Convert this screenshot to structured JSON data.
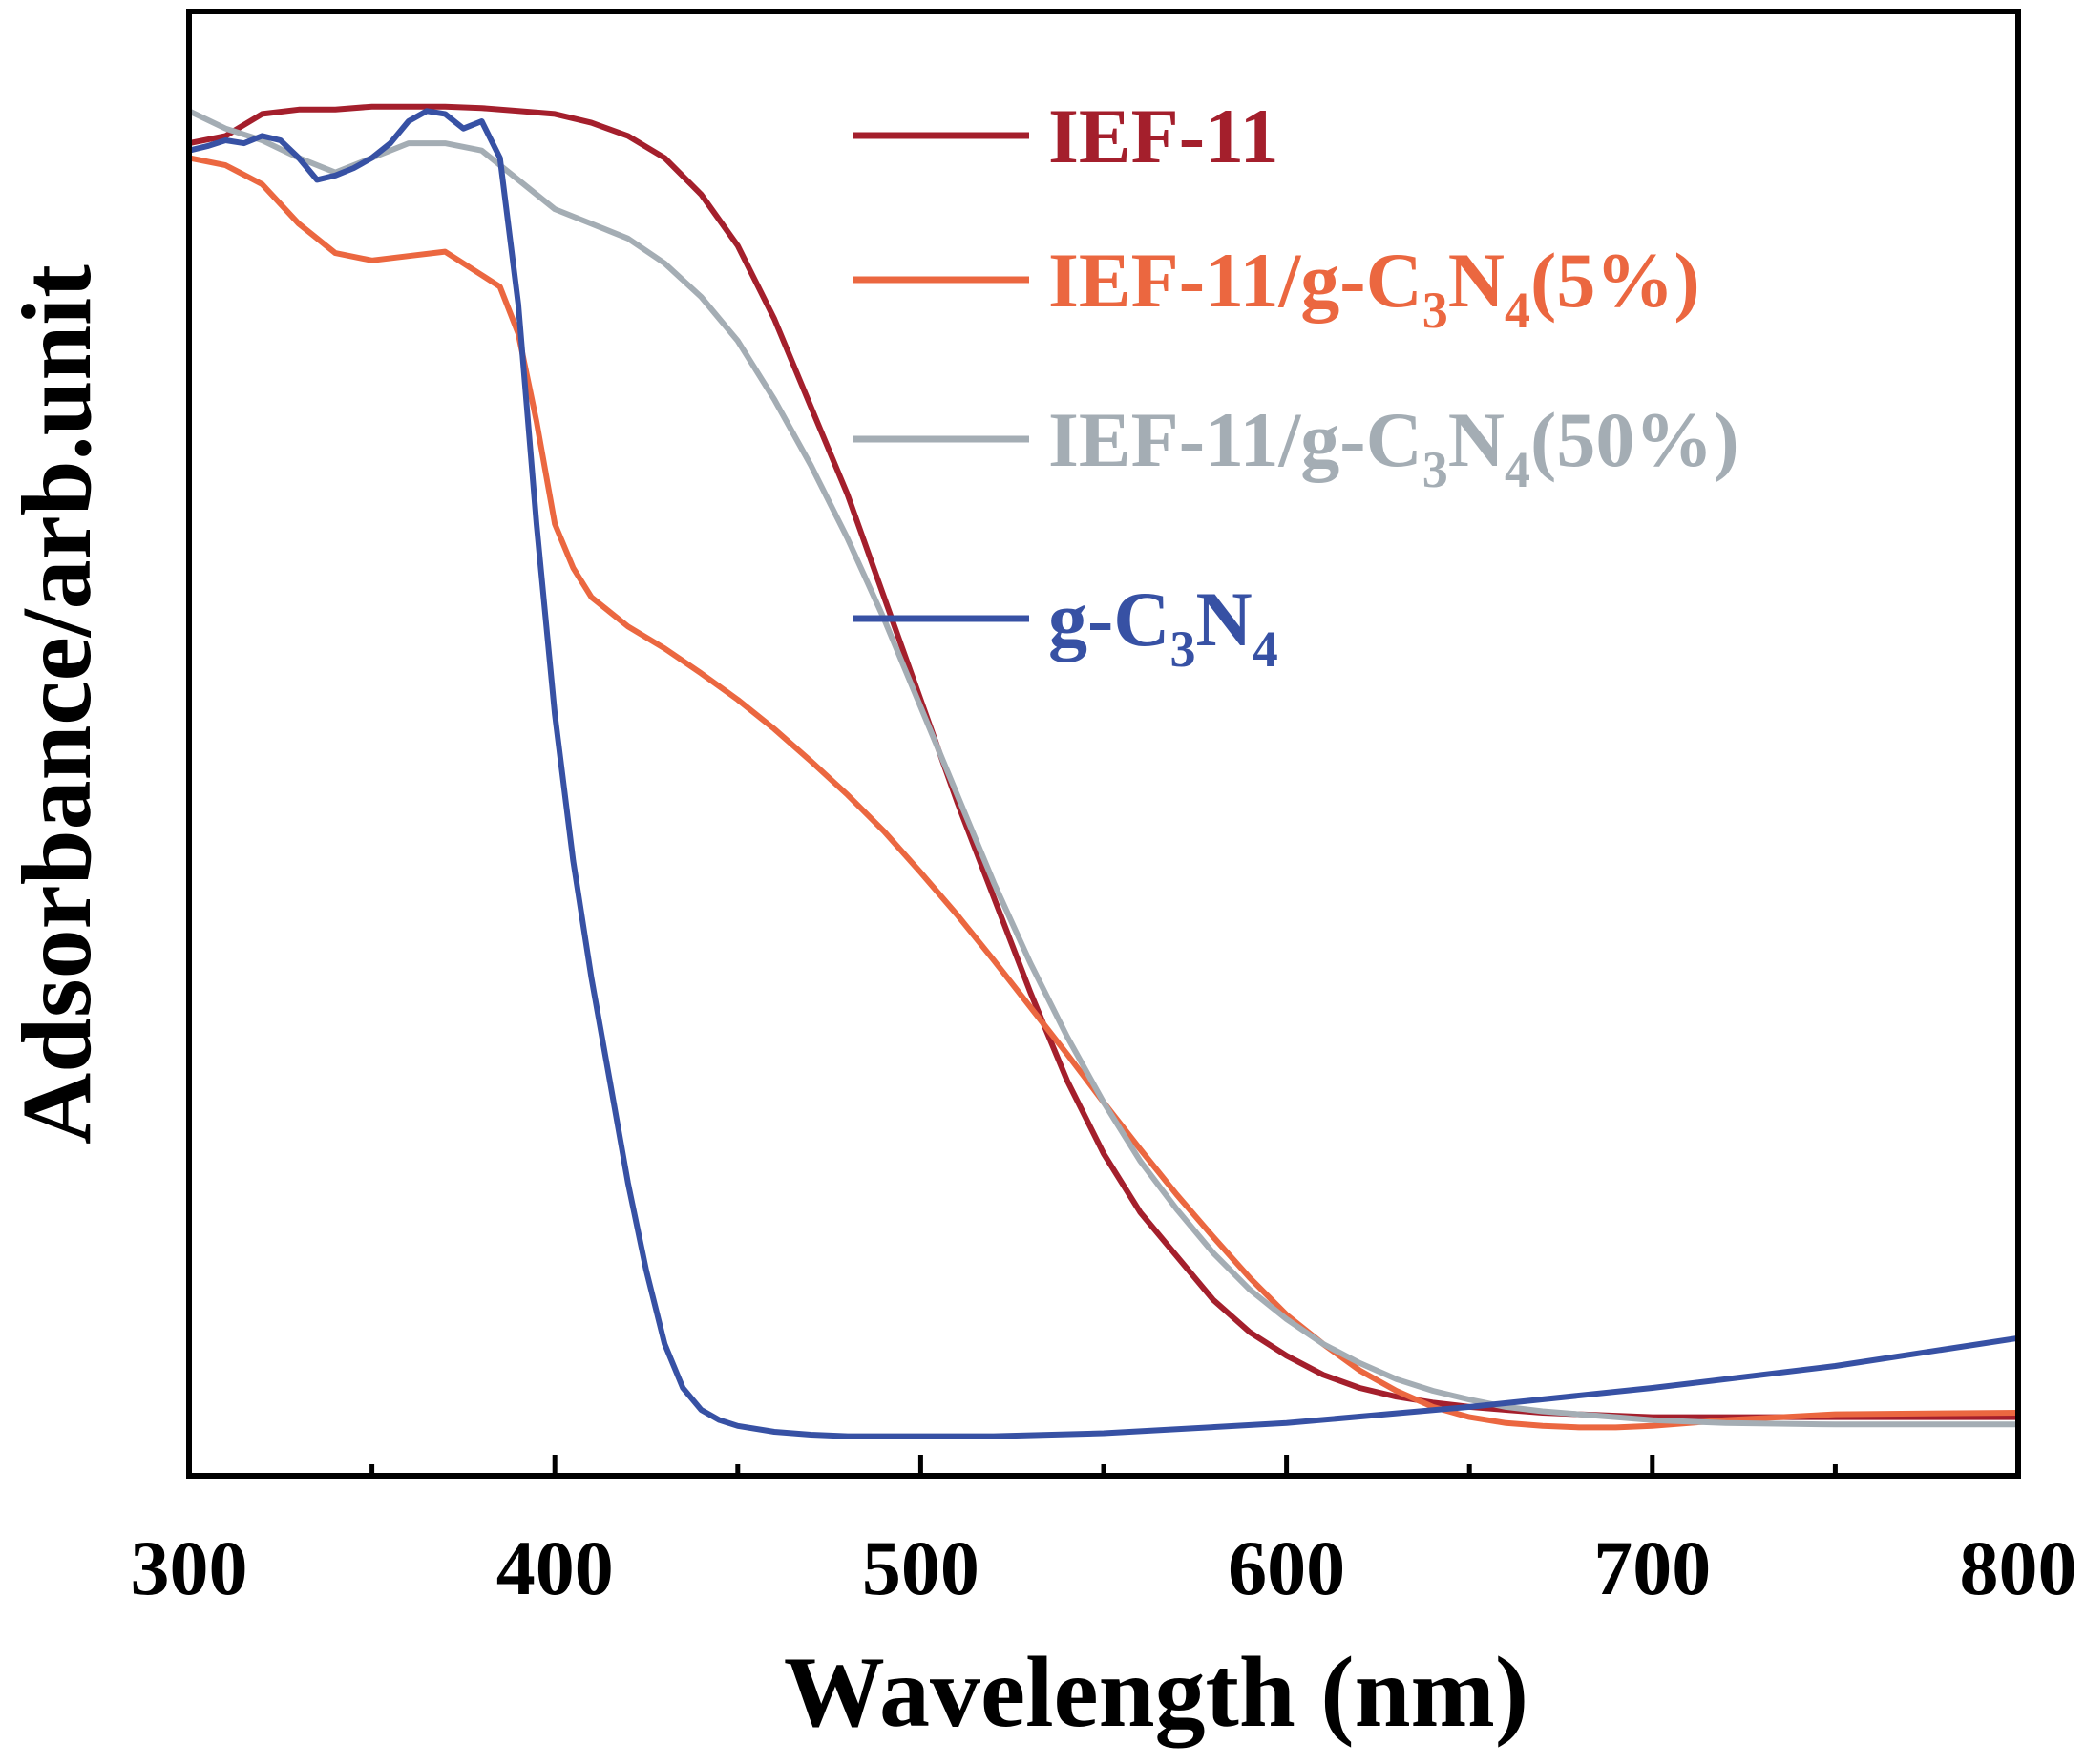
{
  "chart_data": {
    "type": "line",
    "xlabel": "Wavelength (nm)",
    "ylabel": "Adsorbance/arb.unit",
    "xlim": [
      300,
      800
    ],
    "ylim": [
      0,
      1
    ],
    "x_ticks": [
      "300",
      "400",
      "500",
      "600",
      "700",
      "800"
    ],
    "x_minor_ticks": [
      350,
      450,
      550,
      650,
      750
    ],
    "y_ticks": [],
    "grid": false,
    "legend_position": "top-right",
    "series": [
      {
        "name": "IEF-11",
        "legend": {
          "prefix": "IEF-11",
          "sub1": "",
          "mid": "",
          "sub2": "",
          "suffix": ""
        },
        "color": "#A41F2C",
        "x": [
          300,
          310,
          320,
          330,
          340,
          350,
          360,
          370,
          380,
          390,
          400,
          410,
          420,
          430,
          440,
          450,
          460,
          470,
          480,
          490,
          500,
          510,
          520,
          530,
          540,
          550,
          560,
          570,
          580,
          590,
          600,
          610,
          620,
          630,
          640,
          650,
          660,
          670,
          680,
          690,
          700,
          720,
          750,
          800
        ],
        "y": [
          0.91,
          0.915,
          0.93,
          0.933,
          0.933,
          0.935,
          0.935,
          0.935,
          0.934,
          0.932,
          0.93,
          0.924,
          0.915,
          0.9,
          0.875,
          0.84,
          0.79,
          0.73,
          0.67,
          0.6,
          0.53,
          0.46,
          0.395,
          0.33,
          0.27,
          0.22,
          0.18,
          0.15,
          0.12,
          0.098,
          0.082,
          0.069,
          0.06,
          0.054,
          0.05,
          0.047,
          0.045,
          0.043,
          0.042,
          0.041,
          0.04,
          0.04,
          0.04,
          0.04
        ]
      },
      {
        "name": "IEF-11/g-C3N4(5%)",
        "legend": {
          "prefix": "IEF-11/g-C",
          "sub1": "3",
          "mid": "N",
          "sub2": "4",
          "suffix": "(5%)"
        },
        "color": "#EB6740",
        "x": [
          300,
          310,
          320,
          330,
          340,
          350,
          360,
          370,
          380,
          385,
          390,
          395,
          400,
          405,
          410,
          420,
          430,
          440,
          450,
          460,
          470,
          480,
          490,
          500,
          510,
          520,
          530,
          540,
          550,
          560,
          570,
          580,
          590,
          600,
          610,
          620,
          630,
          640,
          650,
          660,
          670,
          680,
          690,
          700,
          720,
          750,
          800
        ],
        "y": [
          0.9,
          0.895,
          0.882,
          0.855,
          0.835,
          0.83,
          0.833,
          0.836,
          0.82,
          0.812,
          0.78,
          0.72,
          0.65,
          0.62,
          0.6,
          0.58,
          0.565,
          0.548,
          0.53,
          0.51,
          0.488,
          0.465,
          0.44,
          0.412,
          0.383,
          0.352,
          0.32,
          0.288,
          0.255,
          0.223,
          0.192,
          0.163,
          0.135,
          0.11,
          0.09,
          0.072,
          0.058,
          0.047,
          0.04,
          0.036,
          0.034,
          0.033,
          0.033,
          0.034,
          0.038,
          0.042,
          0.043
        ]
      },
      {
        "name": "IEF-11/g-C3N4(50%)",
        "legend": {
          "prefix": "IEF-11/g-C",
          "sub1": "3",
          "mid": "N",
          "sub2": "4",
          "suffix": "(50%)"
        },
        "color": "#A4ADB4",
        "x": [
          300,
          310,
          320,
          330,
          340,
          350,
          360,
          370,
          380,
          390,
          400,
          410,
          420,
          430,
          440,
          450,
          460,
          470,
          480,
          490,
          500,
          510,
          520,
          530,
          540,
          550,
          560,
          570,
          580,
          590,
          600,
          610,
          620,
          630,
          640,
          650,
          660,
          670,
          680,
          690,
          700,
          720,
          750,
          800
        ],
        "y": [
          0.932,
          0.92,
          0.912,
          0.9,
          0.89,
          0.9,
          0.91,
          0.91,
          0.905,
          0.885,
          0.865,
          0.855,
          0.845,
          0.828,
          0.805,
          0.775,
          0.735,
          0.69,
          0.64,
          0.585,
          0.525,
          0.465,
          0.405,
          0.35,
          0.3,
          0.255,
          0.215,
          0.182,
          0.152,
          0.127,
          0.107,
          0.09,
          0.077,
          0.066,
          0.058,
          0.052,
          0.047,
          0.044,
          0.042,
          0.04,
          0.038,
          0.036,
          0.035,
          0.035
        ]
      },
      {
        "name": "g-C3N4",
        "legend": {
          "prefix": "g-C",
          "sub1": "3",
          "mid": "N",
          "sub2": "4",
          "suffix": ""
        },
        "color": "#3751A4",
        "x": [
          300,
          305,
          310,
          315,
          320,
          325,
          330,
          335,
          340,
          345,
          350,
          355,
          360,
          365,
          370,
          375,
          380,
          385,
          390,
          395,
          400,
          405,
          410,
          415,
          420,
          425,
          430,
          435,
          440,
          445,
          450,
          460,
          470,
          480,
          500,
          520,
          550,
          600,
          650,
          700,
          750,
          800
        ],
        "y": [
          0.905,
          0.908,
          0.912,
          0.91,
          0.915,
          0.912,
          0.9,
          0.885,
          0.888,
          0.893,
          0.9,
          0.91,
          0.925,
          0.932,
          0.93,
          0.92,
          0.925,
          0.9,
          0.8,
          0.65,
          0.52,
          0.42,
          0.34,
          0.27,
          0.2,
          0.14,
          0.09,
          0.06,
          0.045,
          0.038,
          0.034,
          0.03,
          0.028,
          0.027,
          0.027,
          0.027,
          0.029,
          0.036,
          0.047,
          0.06,
          0.075,
          0.094
        ]
      }
    ]
  }
}
